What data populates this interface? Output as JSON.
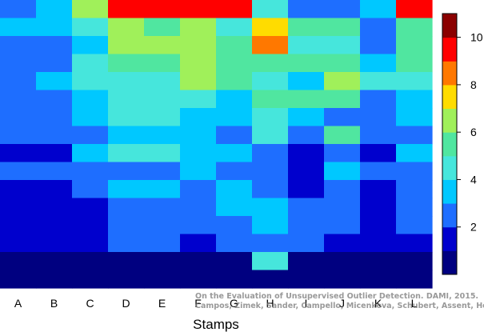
{
  "chart_data": {
    "type": "heatmap",
    "xlabel": "Stamps",
    "categories": [
      "A",
      "B",
      "C",
      "D",
      "E",
      "F",
      "G",
      "H",
      "I",
      "J",
      "K",
      "L"
    ],
    "rows_top_to_bottom": [
      [
        3,
        4,
        7,
        10,
        10,
        10,
        10,
        5,
        3,
        3,
        4,
        10
      ],
      [
        4,
        4,
        5,
        7,
        6,
        7,
        5,
        8,
        6,
        6,
        3,
        6
      ],
      [
        3,
        3,
        4,
        7,
        7,
        7,
        6,
        9,
        5,
        5,
        3,
        6
      ],
      [
        3,
        3,
        5,
        6,
        6,
        7,
        6,
        6,
        6,
        6,
        4,
        6
      ],
      [
        3,
        4,
        5,
        5,
        5,
        7,
        6,
        5,
        4,
        7,
        5,
        5
      ],
      [
        3,
        3,
        4,
        5,
        5,
        5,
        4,
        6,
        6,
        6,
        3,
        4
      ],
      [
        3,
        3,
        4,
        5,
        5,
        4,
        4,
        5,
        4,
        3,
        3,
        4
      ],
      [
        3,
        3,
        3,
        4,
        4,
        4,
        3,
        5,
        3,
        6,
        3,
        3
      ],
      [
        2,
        2,
        4,
        5,
        5,
        4,
        4,
        3,
        2,
        3,
        2,
        4
      ],
      [
        3,
        3,
        3,
        3,
        3,
        4,
        3,
        3,
        2,
        4,
        3,
        3
      ],
      [
        2,
        2,
        3,
        4,
        4,
        3,
        4,
        3,
        2,
        3,
        2,
        3
      ],
      [
        2,
        2,
        2,
        3,
        3,
        3,
        4,
        4,
        3,
        3,
        2,
        3
      ],
      [
        2,
        2,
        2,
        3,
        3,
        3,
        3,
        4,
        3,
        3,
        2,
        3
      ],
      [
        2,
        2,
        2,
        3,
        3,
        2,
        3,
        3,
        3,
        2,
        2,
        2
      ],
      [
        1,
        1,
        1,
        1,
        1,
        1,
        1,
        5,
        1,
        1,
        1,
        1
      ],
      [
        1,
        1,
        1,
        1,
        1,
        1,
        1,
        1,
        1,
        1,
        1,
        1
      ]
    ],
    "colorbar": {
      "ticks": [
        2,
        4,
        6,
        8,
        10
      ],
      "range": [
        0,
        11
      ],
      "colors": [
        "#000080",
        "#0000cd",
        "#1e6eff",
        "#00c8ff",
        "#46e6dc",
        "#50e6a0",
        "#a0f05a",
        "#ffdc00",
        "#ff7800",
        "#ff0000",
        "#8b0000"
      ]
    },
    "grid": false,
    "legend": "colorbar at right"
  },
  "credit": {
    "line1": "On the Evaluation of Unsupervised Outlier Detection. DAMI, 2015.",
    "line2": "Campos, Zimek, Sander, Campello, Micenkova, Schubert, Assent, Houle"
  }
}
